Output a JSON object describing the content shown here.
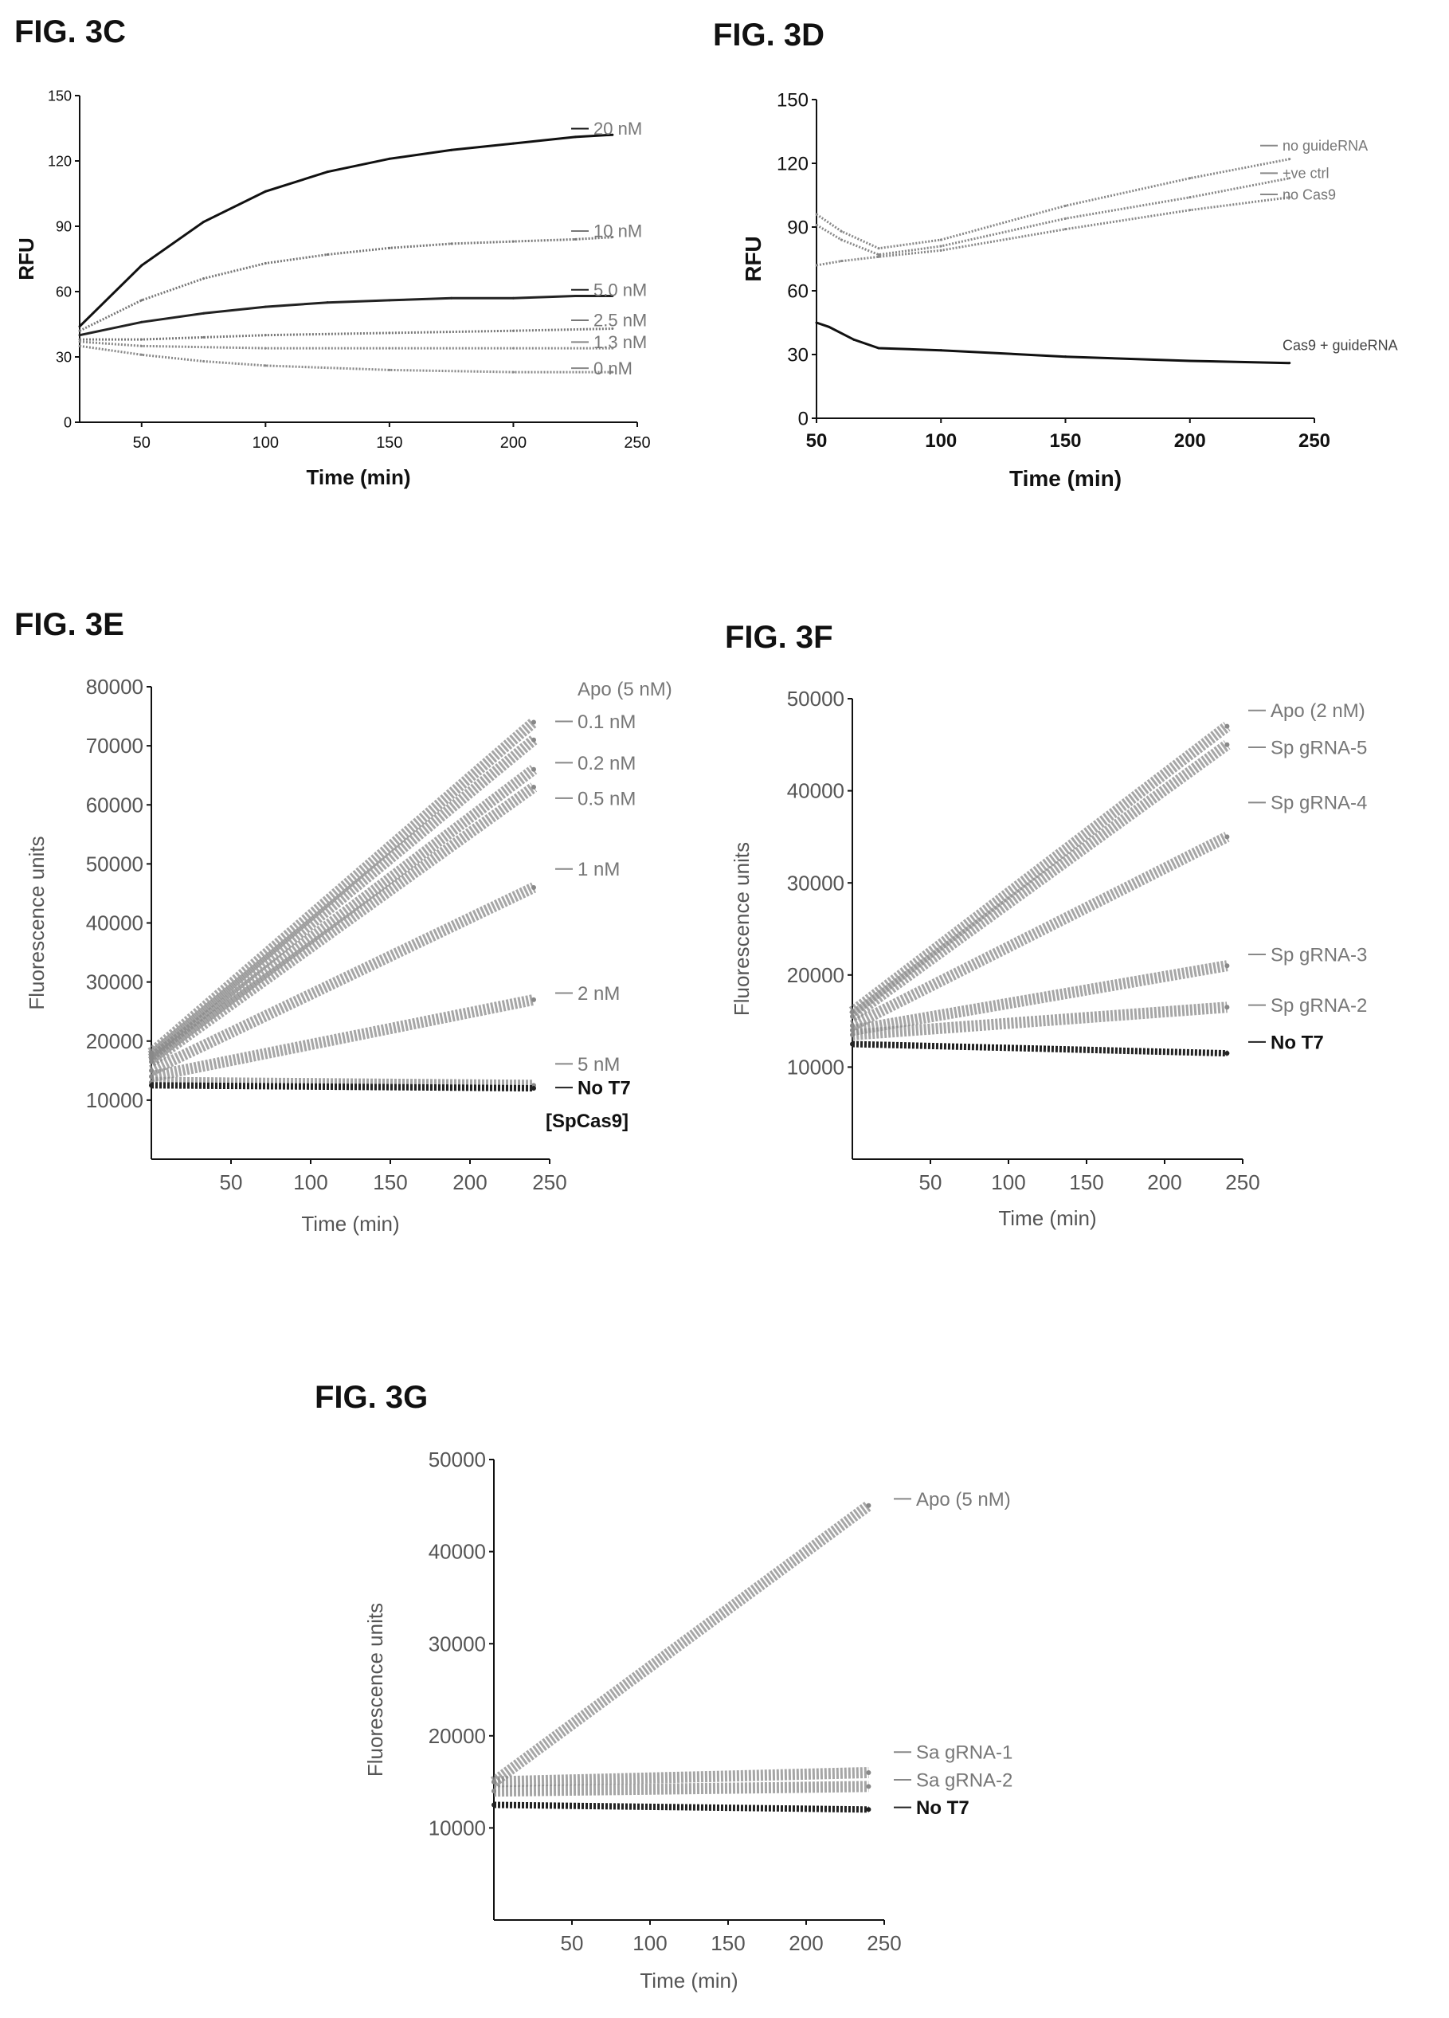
{
  "figures": {
    "c": "FIG. 3C",
    "d": "FIG. 3D",
    "e": "FIG. 3E",
    "f": "FIG. 3F",
    "g": "FIG. 3G"
  },
  "chart_data": [
    {
      "id": "c",
      "type": "line",
      "xlabel": "Time (min)",
      "ylabel": "RFU",
      "xlim": [
        25,
        250
      ],
      "ylim": [
        0,
        150
      ],
      "xticks": [
        50,
        100,
        150,
        200,
        250
      ],
      "yticks": [
        0,
        30,
        60,
        90,
        120,
        150
      ],
      "series": [
        {
          "name": "20 nM",
          "color": "#111111",
          "x": [
            25,
            50,
            75,
            100,
            125,
            150,
            175,
            200,
            225,
            240
          ],
          "y": [
            44,
            72,
            92,
            106,
            115,
            121,
            125,
            128,
            131,
            132
          ]
        },
        {
          "name": "10 nM",
          "color": "#777777",
          "x": [
            25,
            50,
            75,
            100,
            125,
            150,
            175,
            200,
            225,
            240
          ],
          "y": [
            42,
            56,
            66,
            73,
            77,
            80,
            82,
            83,
            84,
            85
          ]
        },
        {
          "name": "5.0 nM",
          "color": "#222222",
          "x": [
            25,
            50,
            75,
            100,
            125,
            150,
            175,
            200,
            225,
            240
          ],
          "y": [
            40,
            46,
            50,
            53,
            55,
            56,
            57,
            57,
            58,
            58
          ]
        },
        {
          "name": "2.5 nM",
          "color": "#777777",
          "x": [
            25,
            50,
            75,
            100,
            150,
            200,
            240
          ],
          "y": [
            38,
            38,
            39,
            40,
            41,
            42,
            43
          ]
        },
        {
          "name": "1.3 nM",
          "color": "#888888",
          "x": [
            25,
            50,
            100,
            150,
            200,
            240
          ],
          "y": [
            37,
            35,
            34,
            34,
            34,
            34
          ]
        },
        {
          "name": "0  nM",
          "color": "#888888",
          "x": [
            25,
            50,
            75,
            100,
            150,
            200,
            240
          ],
          "y": [
            35,
            31,
            28,
            26,
            24,
            23,
            23
          ]
        }
      ]
    },
    {
      "id": "d",
      "type": "line",
      "xlabel": "Time (min)",
      "ylabel": "RFU",
      "xlim": [
        50,
        250
      ],
      "ylim": [
        0,
        150
      ],
      "xticks": [
        50,
        100,
        150,
        200,
        250
      ],
      "yticks": [
        0,
        30,
        60,
        90,
        120,
        150
      ],
      "series": [
        {
          "name": "no guideRNA",
          "color": "#888888",
          "x": [
            50,
            60,
            75,
            100,
            150,
            200,
            240
          ],
          "y": [
            96,
            88,
            80,
            84,
            100,
            113,
            122
          ]
        },
        {
          "name": "+ve ctrl",
          "color": "#888888",
          "x": [
            50,
            60,
            75,
            100,
            150,
            200,
            240
          ],
          "y": [
            91,
            84,
            77,
            81,
            94,
            104,
            113
          ]
        },
        {
          "name": "no Cas9",
          "color": "#888888",
          "x": [
            50,
            60,
            75,
            100,
            150,
            200,
            240
          ],
          "y": [
            72,
            74,
            76,
            79,
            89,
            98,
            104
          ]
        },
        {
          "name": "Cas9 + guideRNA",
          "color": "#111111",
          "x": [
            50,
            55,
            65,
            75,
            100,
            150,
            200,
            240
          ],
          "y": [
            45,
            43,
            37,
            33,
            32,
            29,
            27,
            26
          ]
        }
      ]
    },
    {
      "id": "e",
      "type": "line",
      "xlabel": "Time (min)",
      "ylabel": "Fluorescence units",
      "xlim": [
        0,
        250
      ],
      "ylim": [
        0,
        80000
      ],
      "xticks": [
        50,
        100,
        150,
        200,
        250
      ],
      "yticks": [
        10000,
        20000,
        30000,
        40000,
        50000,
        60000,
        70000,
        80000
      ],
      "annotation": "[SpCas9]",
      "series": [
        {
          "name": "Apo (5 nM)",
          "color": "#888888",
          "x": [
            0,
            240
          ],
          "y": [
            18000,
            74000
          ]
        },
        {
          "name": "0.1 nM",
          "color": "#888888",
          "x": [
            0,
            240
          ],
          "y": [
            17500,
            71000
          ]
        },
        {
          "name": "0.2 nM",
          "color": "#888888",
          "x": [
            0,
            240
          ],
          "y": [
            17000,
            66000
          ]
        },
        {
          "name": "0.5 nM",
          "color": "#888888",
          "x": [
            0,
            240
          ],
          "y": [
            16500,
            63000
          ]
        },
        {
          "name": "1 nM",
          "color": "#888888",
          "x": [
            0,
            240
          ],
          "y": [
            15000,
            46000
          ]
        },
        {
          "name": "2 nM",
          "color": "#888888",
          "x": [
            0,
            240
          ],
          "y": [
            14000,
            27000
          ]
        },
        {
          "name": "5 nM",
          "color": "#888888",
          "x": [
            0,
            240
          ],
          "y": [
            13000,
            12500
          ]
        },
        {
          "name": "No T7",
          "color": "#222222",
          "x": [
            0,
            240
          ],
          "y": [
            12500,
            12000
          ]
        }
      ]
    },
    {
      "id": "f",
      "type": "line",
      "xlabel": "Time (min)",
      "ylabel": "Fluorescence units",
      "xlim": [
        0,
        250
      ],
      "ylim": [
        0,
        50000
      ],
      "xticks": [
        50,
        100,
        150,
        200,
        250
      ],
      "yticks": [
        10000,
        20000,
        30000,
        40000,
        50000
      ],
      "series": [
        {
          "name": "Apo (2 nM)",
          "color": "#888888",
          "x": [
            0,
            240
          ],
          "y": [
            16000,
            47000
          ]
        },
        {
          "name": "Sp gRNA-5",
          "color": "#888888",
          "x": [
            0,
            240
          ],
          "y": [
            15500,
            45000
          ]
        },
        {
          "name": "Sp gRNA-4",
          "color": "#888888",
          "x": [
            0,
            240
          ],
          "y": [
            14500,
            35000
          ]
        },
        {
          "name": "Sp gRNA-3",
          "color": "#888888",
          "x": [
            0,
            240
          ],
          "y": [
            14000,
            21000
          ]
        },
        {
          "name": "Sp gRNA-2",
          "color": "#888888",
          "x": [
            0,
            240
          ],
          "y": [
            13500,
            16500
          ]
        },
        {
          "name": "No T7",
          "color": "#222222",
          "x": [
            0,
            240
          ],
          "y": [
            12500,
            11500
          ]
        }
      ]
    },
    {
      "id": "g",
      "type": "line",
      "xlabel": "Time (min)",
      "ylabel": "Fluorescence units",
      "xlim": [
        0,
        250
      ],
      "ylim": [
        0,
        50000
      ],
      "xticks": [
        50,
        100,
        150,
        200,
        250
      ],
      "yticks": [
        10000,
        20000,
        30000,
        40000,
        50000
      ],
      "series": [
        {
          "name": "Apo (5 nM)",
          "color": "#888888",
          "x": [
            0,
            240
          ],
          "y": [
            15000,
            45000
          ]
        },
        {
          "name": "Sa gRNA-1",
          "color": "#888888",
          "x": [
            0,
            240
          ],
          "y": [
            15000,
            16000
          ]
        },
        {
          "name": "Sa gRNA-2",
          "color": "#888888",
          "x": [
            0,
            240
          ],
          "y": [
            14000,
            14500
          ]
        },
        {
          "name": "No T7",
          "color": "#222222",
          "x": [
            0,
            240
          ],
          "y": [
            12500,
            12000
          ]
        }
      ]
    }
  ]
}
